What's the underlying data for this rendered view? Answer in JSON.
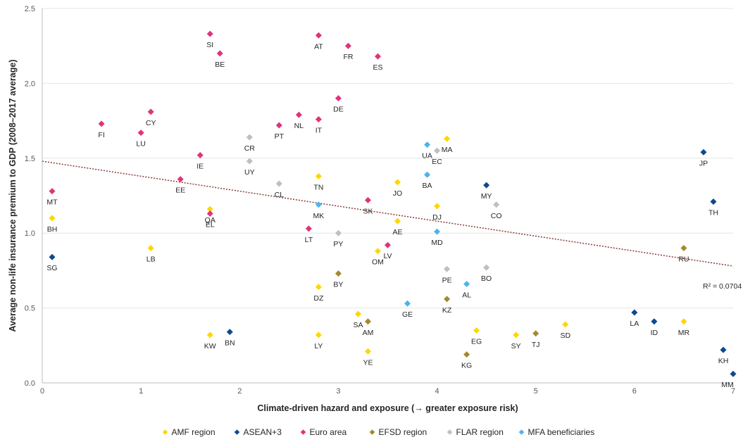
{
  "chart_data": {
    "type": "scatter",
    "title": "",
    "xlabel": "Climate-driven hazard and exposure (→ greater exposure risk)",
    "ylabel": "Average non-life insurance premium to GDP (2008–2017 average)",
    "xlim": [
      0,
      7
    ],
    "ylim": [
      0,
      2.5
    ],
    "xticks": [
      0,
      1,
      2,
      3,
      4,
      5,
      6,
      7
    ],
    "yticks": [
      "0.0",
      "0.5",
      "1.0",
      "1.5",
      "2.0",
      "2.5"
    ],
    "grid": "horizontal",
    "legend_position": "bottom",
    "trendline": {
      "type": "linear",
      "start": [
        0,
        1.48
      ],
      "end": [
        7,
        0.78
      ],
      "color": "#8B3A3A",
      "label": "R² = 0.0704"
    },
    "series": [
      {
        "name": "AMF region",
        "color": "#FFD700",
        "points": [
          {
            "label": "BH",
            "x": 0.1,
            "y": 1.1
          },
          {
            "label": "LB",
            "x": 1.1,
            "y": 0.9
          },
          {
            "label": "QA",
            "x": 1.7,
            "y": 1.16
          },
          {
            "label": "KW",
            "x": 1.7,
            "y": 0.32
          },
          {
            "label": "TN",
            "x": 2.8,
            "y": 1.38
          },
          {
            "label": "DZ",
            "x": 2.8,
            "y": 0.64
          },
          {
            "label": "LY",
            "x": 2.8,
            "y": 0.32
          },
          {
            "label": "SA",
            "x": 3.2,
            "y": 0.46
          },
          {
            "label": "YE",
            "x": 3.3,
            "y": 0.21
          },
          {
            "label": "OM",
            "x": 3.4,
            "y": 0.88
          },
          {
            "label": "AE",
            "x": 3.6,
            "y": 1.08
          },
          {
            "label": "JO",
            "x": 3.6,
            "y": 1.34
          },
          {
            "label": "DJ",
            "x": 4.0,
            "y": 1.18
          },
          {
            "label": "MA",
            "x": 4.1,
            "y": 1.63
          },
          {
            "label": "EG",
            "x": 4.4,
            "y": 0.35
          },
          {
            "label": "SY",
            "x": 4.8,
            "y": 0.32
          },
          {
            "label": "SD",
            "x": 5.3,
            "y": 0.39
          },
          {
            "label": "MR",
            "x": 6.5,
            "y": 0.41
          }
        ]
      },
      {
        "name": "ASEAN+3",
        "color": "#0D4A8F",
        "points": [
          {
            "label": "SG",
            "x": 0.1,
            "y": 0.84
          },
          {
            "label": "BN",
            "x": 1.9,
            "y": 0.34
          },
          {
            "label": "MY",
            "x": 4.5,
            "y": 1.32
          },
          {
            "label": "LA",
            "x": 6.0,
            "y": 0.47
          },
          {
            "label": "ID",
            "x": 6.2,
            "y": 0.41
          },
          {
            "label": "JP",
            "x": 6.7,
            "y": 1.54
          },
          {
            "label": "TH",
            "x": 6.8,
            "y": 1.21
          },
          {
            "label": "KH",
            "x": 6.9,
            "y": 0.22
          },
          {
            "label": "MM",
            "x": 7.0,
            "y": 0.06
          }
        ]
      },
      {
        "name": "Euro area",
        "color": "#E0337A",
        "points": [
          {
            "label": "MT",
            "x": 0.1,
            "y": 1.28
          },
          {
            "label": "FI",
            "x": 0.6,
            "y": 1.73
          },
          {
            "label": "LU",
            "x": 1.0,
            "y": 1.67
          },
          {
            "label": "CY",
            "x": 1.1,
            "y": 1.81
          },
          {
            "label": "EE",
            "x": 1.4,
            "y": 1.36
          },
          {
            "label": "IE",
            "x": 1.6,
            "y": 1.52
          },
          {
            "label": "EL",
            "x": 1.7,
            "y": 1.13
          },
          {
            "label": "SI",
            "x": 1.7,
            "y": 2.33
          },
          {
            "label": "BE",
            "x": 1.8,
            "y": 2.2
          },
          {
            "label": "PT",
            "x": 2.4,
            "y": 1.72
          },
          {
            "label": "NL",
            "x": 2.6,
            "y": 1.79
          },
          {
            "label": "LT",
            "x": 2.7,
            "y": 1.03
          },
          {
            "label": "IT",
            "x": 2.8,
            "y": 1.76
          },
          {
            "label": "AT",
            "x": 2.8,
            "y": 2.32
          },
          {
            "label": "DE",
            "x": 3.0,
            "y": 1.9
          },
          {
            "label": "FR",
            "x": 3.1,
            "y": 2.25
          },
          {
            "label": "SK",
            "x": 3.3,
            "y": 1.22
          },
          {
            "label": "ES",
            "x": 3.4,
            "y": 2.18
          },
          {
            "label": "LV",
            "x": 3.5,
            "y": 0.92
          }
        ]
      },
      {
        "name": "EFSD region",
        "color": "#A38A2E",
        "points": [
          {
            "label": "BY",
            "x": 3.0,
            "y": 0.73
          },
          {
            "label": "AM",
            "x": 3.3,
            "y": 0.41
          },
          {
            "label": "KZ",
            "x": 4.1,
            "y": 0.56
          },
          {
            "label": "KG",
            "x": 4.3,
            "y": 0.19
          },
          {
            "label": "TJ",
            "x": 5.0,
            "y": 0.33
          },
          {
            "label": "RU",
            "x": 6.5,
            "y": 0.9
          }
        ]
      },
      {
        "name": "FLAR region",
        "color": "#BFBFBF",
        "points": [
          {
            "label": "UY",
            "x": 2.1,
            "y": 1.48
          },
          {
            "label": "CR",
            "x": 2.1,
            "y": 1.64
          },
          {
            "label": "CL",
            "x": 2.4,
            "y": 1.33
          },
          {
            "label": "PY",
            "x": 3.0,
            "y": 1.0
          },
          {
            "label": "EC",
            "x": 4.0,
            "y": 1.55
          },
          {
            "label": "PE",
            "x": 4.1,
            "y": 0.76
          },
          {
            "label": "BO",
            "x": 4.5,
            "y": 0.77
          },
          {
            "label": "CO",
            "x": 4.6,
            "y": 1.19
          }
        ]
      },
      {
        "name": "MFA beneficiaries",
        "color": "#4DB3F0",
        "points": [
          {
            "label": "MK",
            "x": 2.8,
            "y": 1.19
          },
          {
            "label": "GE",
            "x": 3.7,
            "y": 0.53
          },
          {
            "label": "UA",
            "x": 3.9,
            "y": 1.59
          },
          {
            "label": "BA",
            "x": 3.9,
            "y": 1.39
          },
          {
            "label": "MD",
            "x": 4.0,
            "y": 1.01
          },
          {
            "label": "AL",
            "x": 4.3,
            "y": 0.66
          }
        ]
      }
    ]
  }
}
